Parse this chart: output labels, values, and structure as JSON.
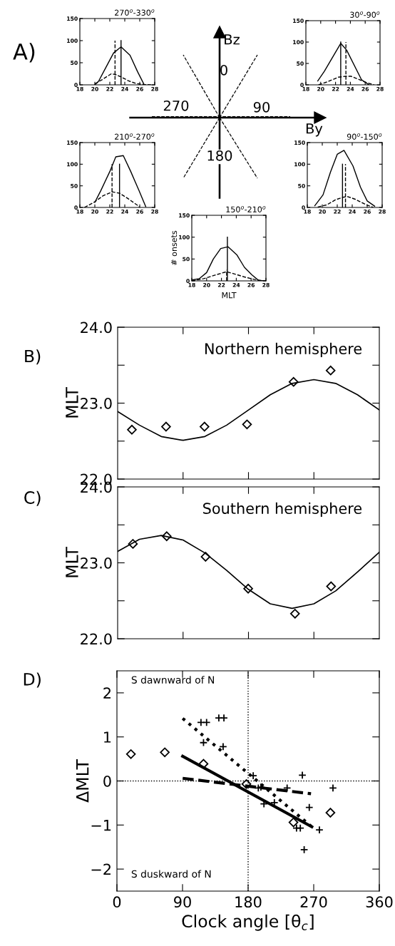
{
  "chart_data": [
    {
      "type": "other",
      "annotations": [
        "A)",
        "Bz",
        "0",
        "270",
        "90",
        "By",
        "180"
      ]
    },
    {
      "type": "line",
      "title": "270$^{o}$-330$^{o}$",
      "xlim": [
        18,
        28
      ],
      "xticks": [
        18,
        20,
        22,
        24,
        26,
        28
      ],
      "ylim": [
        0,
        150
      ],
      "yticks": [
        0,
        50,
        100,
        150
      ],
      "series": [
        {
          "color": "#000000",
          "line_style": "solid",
          "x": [
            20,
            20.5,
            21.4,
            22.5,
            23.5,
            24.7,
            25.7,
            26.6
          ],
          "values": [
            0,
            8,
            37,
            72,
            86,
            67,
            30,
            0
          ]
        },
        {
          "color": "#000000",
          "line_style": "dashed",
          "x": [
            20,
            21,
            22.2,
            22.8,
            23.5,
            24.5,
            25.5,
            26.5,
            27.5
          ],
          "values": [
            2,
            12,
            25,
            23,
            18,
            9,
            3,
            1,
            0
          ]
        },
        {
          "color": "#000000",
          "line_style": "solid",
          "x": [
            23.5,
            23.5
          ],
          "values": [
            0,
            100
          ]
        },
        {
          "color": "#000000",
          "line_style": "dashed",
          "x": [
            22.7,
            22.7
          ],
          "values": [
            0,
            100
          ]
        }
      ]
    },
    {
      "type": "line",
      "title": "30$^{o}$-90$^{o}$",
      "xlim": [
        18,
        28
      ],
      "xticks": [
        18,
        20,
        22,
        24,
        26,
        28
      ],
      "ylim": [
        0,
        150
      ],
      "yticks": [
        0,
        50,
        100,
        150
      ],
      "series": [
        {
          "color": "#000000",
          "line_style": "solid",
          "x": [
            19.6,
            20.5,
            22.7,
            23.5,
            25.5,
            26.5
          ],
          "values": [
            9,
            32,
            97,
            81,
            12,
            0
          ]
        },
        {
          "color": "#000000",
          "line_style": "dashed",
          "x": [
            19.7,
            20.9,
            22.4,
            23.4,
            24.1,
            26.2,
            27.2
          ],
          "values": [
            0,
            7,
            18,
            20,
            20,
            5,
            0
          ]
        },
        {
          "color": "#000000",
          "line_style": "solid",
          "x": [
            22.7,
            22.7
          ],
          "values": [
            0,
            100
          ]
        },
        {
          "color": "#000000",
          "line_style": "dashed",
          "x": [
            23.4,
            23.4
          ],
          "values": [
            0,
            100
          ]
        }
      ]
    },
    {
      "type": "line",
      "title": "210$^{o}$-270$^{o}$",
      "xlim": [
        18,
        28
      ],
      "xticks": [
        18,
        20,
        22,
        24,
        26,
        28
      ],
      "ylim": [
        0,
        150
      ],
      "yticks": [
        0,
        50,
        100,
        150
      ],
      "series": [
        {
          "color": "#000000",
          "line_style": "solid",
          "x": [
            20,
            20.8,
            22,
            22.8,
            23.8,
            24.8,
            25.9,
            26.8
          ],
          "values": [
            12,
            39,
            83,
            117,
            120,
            83,
            39,
            2
          ]
        },
        {
          "color": "#000000",
          "line_style": "dashed",
          "x": [
            18.6,
            19.9,
            21.1,
            22.3,
            23.3,
            24.3,
            25.7,
            26
          ],
          "values": [
            0,
            12,
            27,
            36,
            33,
            22,
            5,
            0
          ]
        },
        {
          "color": "#000000",
          "line_style": "dashed",
          "x": [
            22.3,
            22.3
          ],
          "values": [
            0,
            100
          ]
        },
        {
          "color": "#000000",
          "line_style": "solid",
          "x": [
            23.3,
            23.3
          ],
          "values": [
            0,
            100
          ]
        }
      ]
    },
    {
      "type": "line",
      "title": "90$^{o}$-150$^{o}$",
      "xlim": [
        18,
        28
      ],
      "xticks": [
        18,
        20,
        22,
        24,
        26,
        28
      ],
      "ylim": [
        0,
        150
      ],
      "yticks": [
        0,
        50,
        100,
        150
      ],
      "series": [
        {
          "color": "#000000",
          "line_style": "solid",
          "x": [
            19,
            20.1,
            21.1,
            22,
            22.9,
            24.1,
            25.1,
            26,
            27
          ],
          "values": [
            4,
            29,
            82,
            123,
            132,
            96,
            47,
            15,
            3
          ]
        },
        {
          "color": "#000000",
          "line_style": "dashed",
          "x": [
            19.4,
            20.6,
            21.8,
            22.9,
            23.4,
            24.4,
            25.9,
            26.8
          ],
          "values": [
            1,
            6,
            18,
            24,
            25,
            19,
            6,
            0
          ]
        },
        {
          "color": "#000000",
          "line_style": "solid",
          "x": [
            22.7,
            22.7
          ],
          "values": [
            0,
            100
          ]
        },
        {
          "color": "#000000",
          "line_style": "dashed",
          "x": [
            23.1,
            23.1
          ],
          "values": [
            0,
            100
          ]
        }
      ]
    },
    {
      "type": "line",
      "title": "150$^{o}$-210$^{o}$",
      "xlabel": "MLT",
      "ylabel": "# onsets",
      "xlim": [
        18,
        28
      ],
      "xticks": [
        18,
        20,
        22,
        24,
        26,
        28
      ],
      "ylim": [
        0,
        150
      ],
      "yticks": [
        0,
        50,
        100,
        150
      ],
      "series": [
        {
          "color": "#000000",
          "line_style": "solid",
          "x": [
            18,
            19,
            20,
            20.9,
            21.9,
            22.9,
            24.1,
            25.1,
            26.1,
            27,
            28
          ],
          "values": [
            2,
            5,
            19,
            50,
            74,
            78,
            59,
            31,
            14,
            1,
            0
          ]
        },
        {
          "color": "#000000",
          "line_style": "dashed",
          "x": [
            18,
            19.6,
            21.3,
            22.7,
            23.7,
            25.1,
            26.5,
            27.8
          ],
          "values": [
            0,
            5,
            14,
            21,
            16,
            9,
            3,
            0
          ]
        },
        {
          "color": "#000000",
          "line_style": "solid",
          "x": [
            22.8,
            22.8
          ],
          "values": [
            0,
            100
          ]
        },
        {
          "color": "#000000",
          "line_style": "dashed",
          "x": [
            22.7,
            22.7
          ],
          "values": [
            0,
            25
          ]
        }
      ]
    },
    {
      "type": "scatter",
      "ylabel": "MLT",
      "annotations": [
        "B)",
        "Northern hemisphere"
      ],
      "xlim": [
        0,
        360
      ],
      "xticks": [
        {
          "value": 90,
          "label": null
        },
        {
          "value": 180,
          "label": null
        },
        {
          "value": 270,
          "label": null
        }
      ],
      "ylim": [
        22,
        24
      ],
      "yticks": [
        {
          "value": 22,
          "label": "22.0"
        },
        {
          "value": 22.5,
          "label": null
        },
        {
          "value": 23,
          "label": "23.0"
        },
        {
          "value": 23.5,
          "label": null
        },
        {
          "value": 24,
          "label": "24.0"
        }
      ],
      "tick_labels": "y",
      "series": [
        {
          "type": "scatter",
          "color": "#000000",
          "marker": "diamond",
          "x": [
            19.6,
            66.6,
            119.5,
            178,
            242,
            293
          ],
          "values": [
            22.65,
            22.69,
            22.69,
            22.72,
            23.28,
            23.43
          ]
        },
        {
          "type": "line",
          "color": "#000000",
          "line_style": "solid",
          "x": [
            0,
            30,
            60,
            90,
            120,
            150,
            180,
            210,
            240,
            270,
            300,
            330,
            360
          ],
          "values": [
            22.89,
            22.71,
            22.56,
            22.51,
            22.56,
            22.71,
            22.91,
            23.11,
            23.26,
            23.31,
            23.26,
            23.11,
            22.91
          ]
        }
      ]
    },
    {
      "type": "scatter",
      "ylabel": "MLT",
      "annotations": [
        "C)",
        "Southern hemisphere"
      ],
      "xlim": [
        0,
        360
      ],
      "xticks": [
        {
          "value": 90,
          "label": null
        },
        {
          "value": 180,
          "label": null
        },
        {
          "value": 270,
          "label": null
        }
      ],
      "ylim": [
        22,
        24
      ],
      "yticks": [
        {
          "value": 22,
          "label": "22.0"
        },
        {
          "value": 22.5,
          "label": null
        },
        {
          "value": 23,
          "label": "23.0"
        },
        {
          "value": 23.5,
          "label": null
        },
        {
          "value": 24,
          "label": "24.0"
        }
      ],
      "tick_labels": "y",
      "series": [
        {
          "type": "scatter",
          "color": "#000000",
          "marker": "diamond",
          "x": [
            21,
            67.5,
            121,
            179.6,
            244,
            293.6
          ],
          "values": [
            23.25,
            23.35,
            23.08,
            22.66,
            22.33,
            22.69
          ]
        },
        {
          "type": "line",
          "color": "#000000",
          "line_style": "solid",
          "x": [
            0,
            30,
            60,
            90,
            120,
            150,
            180,
            210,
            240,
            270,
            300,
            330,
            360
          ],
          "values": [
            23.15,
            23.31,
            23.36,
            23.3,
            23.13,
            22.9,
            22.65,
            22.46,
            22.4,
            22.46,
            22.63,
            22.88,
            23.14
          ]
        }
      ]
    },
    {
      "type": "scatter",
      "xlabel": "Clock angle [θ$_{c}$]",
      "ylabel": "ΔMLT",
      "annotations": [
        "D)",
        "S dawnward of N",
        "S duskward of N"
      ],
      "xlim": [
        0,
        360
      ],
      "xticks": [
        0,
        90,
        180,
        270,
        360
      ],
      "ylim": [
        -2.5,
        2.5
      ],
      "yticks": [
        {
          "value": -2,
          "label": "−2"
        },
        {
          "value": -1,
          "label": "−1"
        },
        0,
        1,
        2
      ],
      "ref_lines": [
        {
          "axis": "x",
          "value": 180,
          "line_style": "dotted",
          "color": "#000000"
        },
        {
          "axis": "y",
          "value": 0,
          "line_style": "dotted",
          "color": "#000000"
        }
      ],
      "series": [
        {
          "type": "scatter",
          "color": "#000000",
          "marker": "diamond",
          "x": [
            19.2,
            65.7,
            118.8,
            177.6,
            242.2,
            292.9
          ],
          "values": [
            0.61,
            0.65,
            0.39,
            -0.07,
            -0.94,
            -0.72
          ]
        },
        {
          "type": "scatter",
          "color": "#000000",
          "marker": "cross",
          "x": [
            115.3,
            123,
            139.8,
            146.8,
            118.8,
            145.7,
            187,
            194,
            197.5,
            201.7,
            216,
            233.5,
            246.4,
            251.6,
            254.4,
            256.9,
            263.9,
            277.8,
            296.4
          ],
          "values": [
            1.33,
            1.33,
            1.43,
            1.43,
            0.87,
            0.78,
            0.12,
            -0.16,
            -0.14,
            -0.52,
            -0.49,
            -0.16,
            -1.07,
            -1.07,
            0.13,
            -1.56,
            -0.6,
            -1.11,
            -0.16
          ]
        },
        {
          "type": "line",
          "color": "#000000",
          "line_style": "solid",
          "x": [
            90.2,
            267.4
          ],
          "values": [
            0.56,
            -1.04
          ]
        },
        {
          "type": "line",
          "color": "#000000",
          "line_style": "dotted",
          "x": [
            90.2,
            267.4
          ],
          "values": [
            1.42,
            -1.04
          ]
        },
        {
          "type": "line",
          "color": "#000000",
          "line_style": "dashed",
          "x": [
            90.2,
            266.3
          ],
          "values": [
            0.06,
            -0.29
          ]
        }
      ]
    }
  ]
}
